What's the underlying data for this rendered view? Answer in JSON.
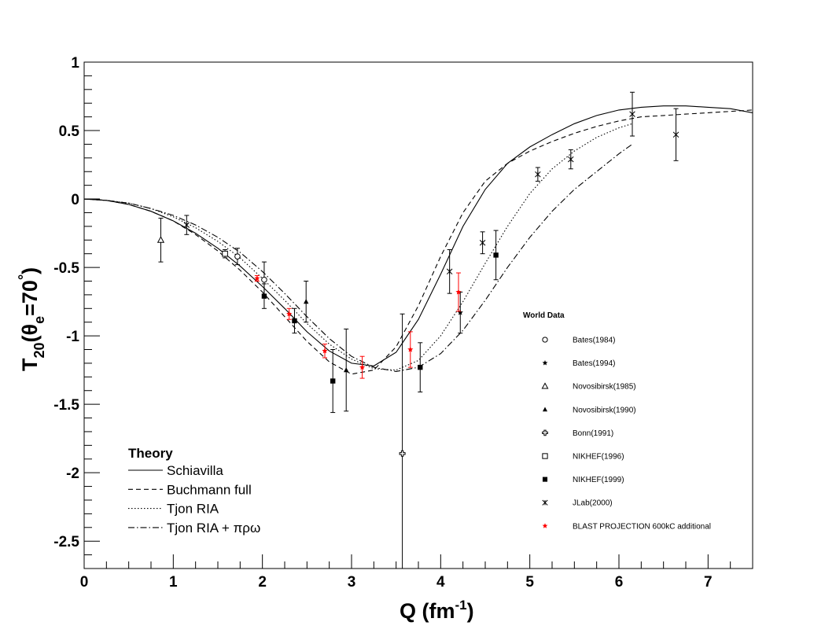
{
  "chart_data": {
    "type": "scatter",
    "xlabel": "Q (fm",
    "xlabel_sup": "-1",
    "xlabel_end": ")",
    "ylabel_main": "T",
    "ylabel_sub": "20",
    "ylabel_open": "(θ",
    "ylabel_sub2": "e",
    "ylabel_close": "=70",
    "ylabel_deg": "°",
    "ylabel_end": ")",
    "xlim": [
      0,
      7.5
    ],
    "ylim": [
      -2.7,
      1.0
    ],
    "x_ticks": [
      0,
      1,
      2,
      3,
      4,
      5,
      6,
      7
    ],
    "y_ticks": [
      1,
      0.5,
      0,
      -0.5,
      -1,
      -1.5,
      -2,
      -2.5
    ],
    "x_tick_labels": [
      "0",
      "1",
      "2",
      "3",
      "4",
      "5",
      "6",
      "7"
    ],
    "y_tick_labels": [
      "1",
      "0.5",
      "0",
      "-0.5",
      "-1",
      "-1.5",
      "-2",
      "-2.5"
    ],
    "world_legend_title": "World Data",
    "theory_legend_title": "Theory",
    "theory": [
      {
        "name": "Schiavilla",
        "style": "solid",
        "x": [
          0,
          0.25,
          0.5,
          0.75,
          1.0,
          1.25,
          1.5,
          1.75,
          2.0,
          2.25,
          2.5,
          2.75,
          3.0,
          3.25,
          3.5,
          3.75,
          4.0,
          4.25,
          4.5,
          4.75,
          5.0,
          5.25,
          5.5,
          5.75,
          6.0,
          6.25,
          6.5,
          6.75,
          7.0,
          7.25,
          7.5
        ],
        "y": [
          0,
          -0.01,
          -0.04,
          -0.09,
          -0.16,
          -0.25,
          -0.36,
          -0.49,
          -0.64,
          -0.8,
          -0.97,
          -1.11,
          -1.2,
          -1.22,
          -1.12,
          -0.88,
          -0.55,
          -0.2,
          0.07,
          0.26,
          0.38,
          0.47,
          0.55,
          0.61,
          0.65,
          0.67,
          0.68,
          0.68,
          0.67,
          0.66,
          0.63
        ]
      },
      {
        "name": "Buchmann full",
        "style": "dashed",
        "x": [
          0,
          0.25,
          0.5,
          0.75,
          1.0,
          1.25,
          1.5,
          1.75,
          2.0,
          2.25,
          2.5,
          2.75,
          3.0,
          3.25,
          3.5,
          3.75,
          4.0,
          4.25,
          4.5,
          4.75,
          5.0,
          5.25,
          5.5,
          5.75,
          6.0,
          6.25,
          6.5,
          6.75,
          7.0,
          7.25,
          7.5
        ],
        "y": [
          0,
          -0.01,
          -0.04,
          -0.09,
          -0.16,
          -0.26,
          -0.38,
          -0.52,
          -0.68,
          -0.86,
          -1.04,
          -1.19,
          -1.28,
          -1.25,
          -1.08,
          -0.78,
          -0.42,
          -0.1,
          0.13,
          0.26,
          0.35,
          0.42,
          0.48,
          0.53,
          0.57,
          0.6,
          0.61,
          0.62,
          0.63,
          0.64,
          0.65
        ]
      },
      {
        "name": "Tjon RIA",
        "style": "dotted",
        "x": [
          0,
          0.25,
          0.5,
          0.75,
          1.0,
          1.25,
          1.5,
          1.75,
          2.0,
          2.25,
          2.5,
          2.75,
          3.0,
          3.25,
          3.5,
          3.75,
          4.0,
          4.25,
          4.5,
          4.75,
          5.0,
          5.25,
          5.5,
          5.75,
          6.0,
          6.15
        ],
        "y": [
          0,
          -0.01,
          -0.03,
          -0.07,
          -0.13,
          -0.21,
          -0.31,
          -0.43,
          -0.58,
          -0.74,
          -0.91,
          -1.06,
          -1.17,
          -1.24,
          -1.25,
          -1.18,
          -1.0,
          -0.75,
          -0.47,
          -0.2,
          0.04,
          0.22,
          0.35,
          0.45,
          0.52,
          0.55
        ]
      },
      {
        "name": "Tjon RIA + πρω",
        "style": "dashdot",
        "x": [
          0,
          0.25,
          0.5,
          0.75,
          1.0,
          1.25,
          1.5,
          1.75,
          2.0,
          2.25,
          2.5,
          2.75,
          3.0,
          3.25,
          3.5,
          3.75,
          4.0,
          4.25,
          4.5,
          4.75,
          5.0,
          5.25,
          5.5,
          5.75,
          6.0,
          6.15
        ],
        "y": [
          0,
          -0.01,
          -0.03,
          -0.07,
          -0.12,
          -0.19,
          -0.28,
          -0.39,
          -0.53,
          -0.69,
          -0.86,
          -1.02,
          -1.15,
          -1.23,
          -1.26,
          -1.23,
          -1.13,
          -0.96,
          -0.74,
          -0.5,
          -0.28,
          -0.09,
          0.07,
          0.2,
          0.33,
          0.4
        ]
      }
    ],
    "series": [
      {
        "name": "Bates(1984)",
        "marker": "open-circle",
        "color": "#000000",
        "points": [
          {
            "x": 1.72,
            "y": -0.42,
            "err": 0.06
          },
          {
            "x": 2.02,
            "y": -0.59,
            "err": 0.13
          }
        ]
      },
      {
        "name": "Bates(1994)",
        "marker": "filled-star",
        "color": "#000000",
        "points": [
          {
            "x": 4.22,
            "y": -0.83,
            "err": 0.15
          }
        ]
      },
      {
        "name": "Novosibirsk(1985)",
        "marker": "open-triangle",
        "color": "#000000",
        "points": [
          {
            "x": 0.86,
            "y": -0.3,
            "err": 0.16
          }
        ]
      },
      {
        "name": "Novosibirsk(1990)",
        "marker": "filled-triangle",
        "color": "#000000",
        "points": [
          {
            "x": 2.49,
            "y": -0.75,
            "err": 0.15
          },
          {
            "x": 2.94,
            "y": -1.25,
            "err": 0.3
          }
        ]
      },
      {
        "name": "Bonn(1991)",
        "marker": "open-cross",
        "color": "#000000",
        "points": [
          {
            "x": 3.57,
            "y": -1.86,
            "err": 1.02
          }
        ]
      },
      {
        "name": "NIKHEF(1996)",
        "marker": "open-square",
        "color": "#000000",
        "points": [
          {
            "x": 1.58,
            "y": -0.4,
            "err": 0.03
          }
        ]
      },
      {
        "name": "NIKHEF(1999)",
        "marker": "filled-square",
        "color": "#000000",
        "points": [
          {
            "x": 2.02,
            "y": -0.71,
            "err": 0.09
          },
          {
            "x": 2.36,
            "y": -0.89,
            "err": 0.09
          },
          {
            "x": 2.79,
            "y": -1.33,
            "err": 0.23
          },
          {
            "x": 3.77,
            "y": -1.23,
            "err": 0.18
          },
          {
            "x": 4.62,
            "y": -0.41,
            "err": 0.18
          }
        ]
      },
      {
        "name": "JLab(2000)",
        "marker": "x-star",
        "color": "#000000",
        "points": [
          {
            "x": 1.15,
            "y": -0.19,
            "err": 0.07
          },
          {
            "x": 4.1,
            "y": -0.53,
            "err": 0.16
          },
          {
            "x": 4.47,
            "y": -0.32,
            "err": 0.08
          },
          {
            "x": 5.09,
            "y": 0.18,
            "err": 0.05
          },
          {
            "x": 5.46,
            "y": 0.29,
            "err": 0.07
          },
          {
            "x": 6.15,
            "y": 0.62,
            "err": 0.16
          },
          {
            "x": 6.64,
            "y": 0.47,
            "err": 0.19
          }
        ]
      },
      {
        "name": "BLAST PROJECTION 600kC additional",
        "marker": "red-star",
        "color": "#ff0000",
        "points": [
          {
            "x": 1.94,
            "y": -0.58,
            "err": 0.02
          },
          {
            "x": 2.3,
            "y": -0.84,
            "err": 0.04
          },
          {
            "x": 2.7,
            "y": -1.11,
            "err": 0.05
          },
          {
            "x": 3.12,
            "y": -1.23,
            "err": 0.08
          },
          {
            "x": 3.66,
            "y": -1.1,
            "err": 0.13
          },
          {
            "x": 4.2,
            "y": -0.68,
            "err": 0.14
          }
        ]
      }
    ]
  }
}
